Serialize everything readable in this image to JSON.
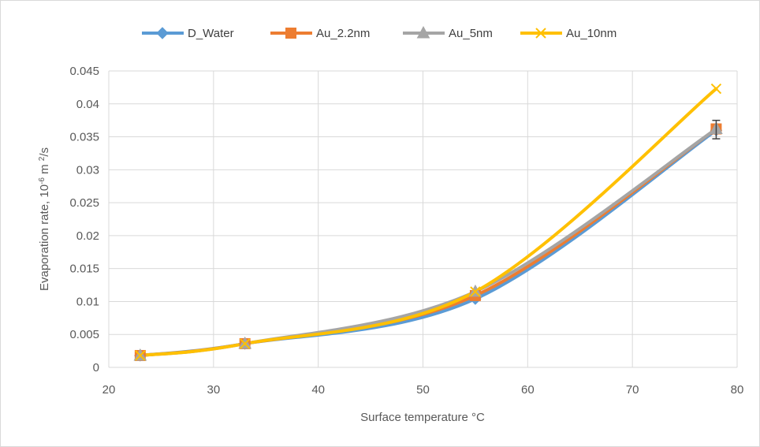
{
  "chart_data": {
    "type": "line",
    "xlabel": "Surface temperature °C",
    "ylabel": {
      "prefix": "Evaporation rate, 10",
      "sup": "-6",
      "mid": " m ",
      "sup2": "2",
      "suffix": "/s"
    },
    "xlim": [
      20,
      80
    ],
    "ylim": [
      0,
      0.045
    ],
    "x_ticks": [
      20,
      30,
      40,
      50,
      60,
      70,
      80
    ],
    "y_ticks": [
      0,
      0.005,
      0.01,
      0.015,
      0.02,
      0.025,
      0.03,
      0.035,
      0.04,
      0.045
    ],
    "x_tick_labels": [
      "20",
      "30",
      "40",
      "50",
      "60",
      "70",
      "80"
    ],
    "y_tick_labels": [
      "0",
      "0.005",
      "0.01",
      "0.015",
      "0.02",
      "0.025",
      "0.03",
      "0.035",
      "0.04",
      "0.045"
    ],
    "grid": true,
    "legend_position": "top",
    "x": [
      23,
      33,
      55,
      78
    ],
    "series": [
      {
        "name": "D_Water",
        "values": [
          0.0018,
          0.0036,
          0.0104,
          0.036
        ],
        "color": "#5B9BD5",
        "marker": "diamond"
      },
      {
        "name": "Au_2.2nm",
        "values": [
          0.0018,
          0.0036,
          0.0109,
          0.0362
        ],
        "color": "#ED7D31",
        "marker": "square"
      },
      {
        "name": "Au_5nm",
        "values": [
          0.0018,
          0.0036,
          0.0115,
          0.0362
        ],
        "color": "#A5A5A5",
        "marker": "triangle"
      },
      {
        "name": "Au_10nm",
        "values": [
          0.0018,
          0.0036,
          0.0115,
          0.0423
        ],
        "color": "#FFC000",
        "marker": "x"
      }
    ],
    "error_bar": {
      "x": 78,
      "low": 0.0347,
      "high": 0.0375,
      "color": "#404040"
    }
  }
}
